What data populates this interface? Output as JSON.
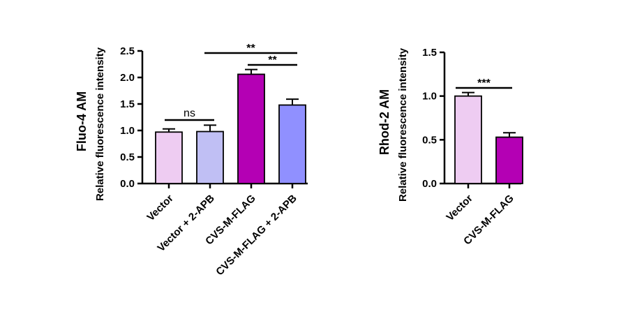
{
  "chart_data": [
    {
      "type": "bar",
      "ylabel_title": "Fluo-4 AM",
      "ylabel": "Relative fluorescence intensity",
      "categories": [
        "Vector",
        "Vector + 2-APB",
        "CVS-M-FLAG",
        "CVS-M-FLAG + 2-APB"
      ],
      "values": [
        0.97,
        0.98,
        2.06,
        1.48
      ],
      "errors": [
        0.06,
        0.12,
        0.09,
        0.11
      ],
      "colors": [
        "#eeccf2",
        "#c0bff4",
        "#b400b4",
        "#9090ff"
      ],
      "ylim": [
        0,
        2.5
      ],
      "yticks": [
        "0.0",
        "0.5",
        "1.0",
        "1.5",
        "2.0",
        "2.5"
      ],
      "significance": [
        {
          "from": 0,
          "to": 1,
          "label": "ns"
        },
        {
          "from": 1,
          "to": 3,
          "label": "**"
        },
        {
          "from": 2,
          "to": 3,
          "label": "**"
        }
      ]
    },
    {
      "type": "bar",
      "ylabel_title": "Rhod-2 AM",
      "ylabel": "Relative fluorescence intensity",
      "categories": [
        "Vector",
        "CVS-M-FLAG"
      ],
      "values": [
        1.0,
        0.53
      ],
      "errors": [
        0.04,
        0.05
      ],
      "colors": [
        "#eeccf2",
        "#b400b4"
      ],
      "ylim": [
        0,
        1.5
      ],
      "yticks": [
        "0.0",
        "0.5",
        "1.0",
        "1.5"
      ],
      "significance": [
        {
          "from": 0,
          "to": 1,
          "label": "***"
        }
      ]
    }
  ]
}
